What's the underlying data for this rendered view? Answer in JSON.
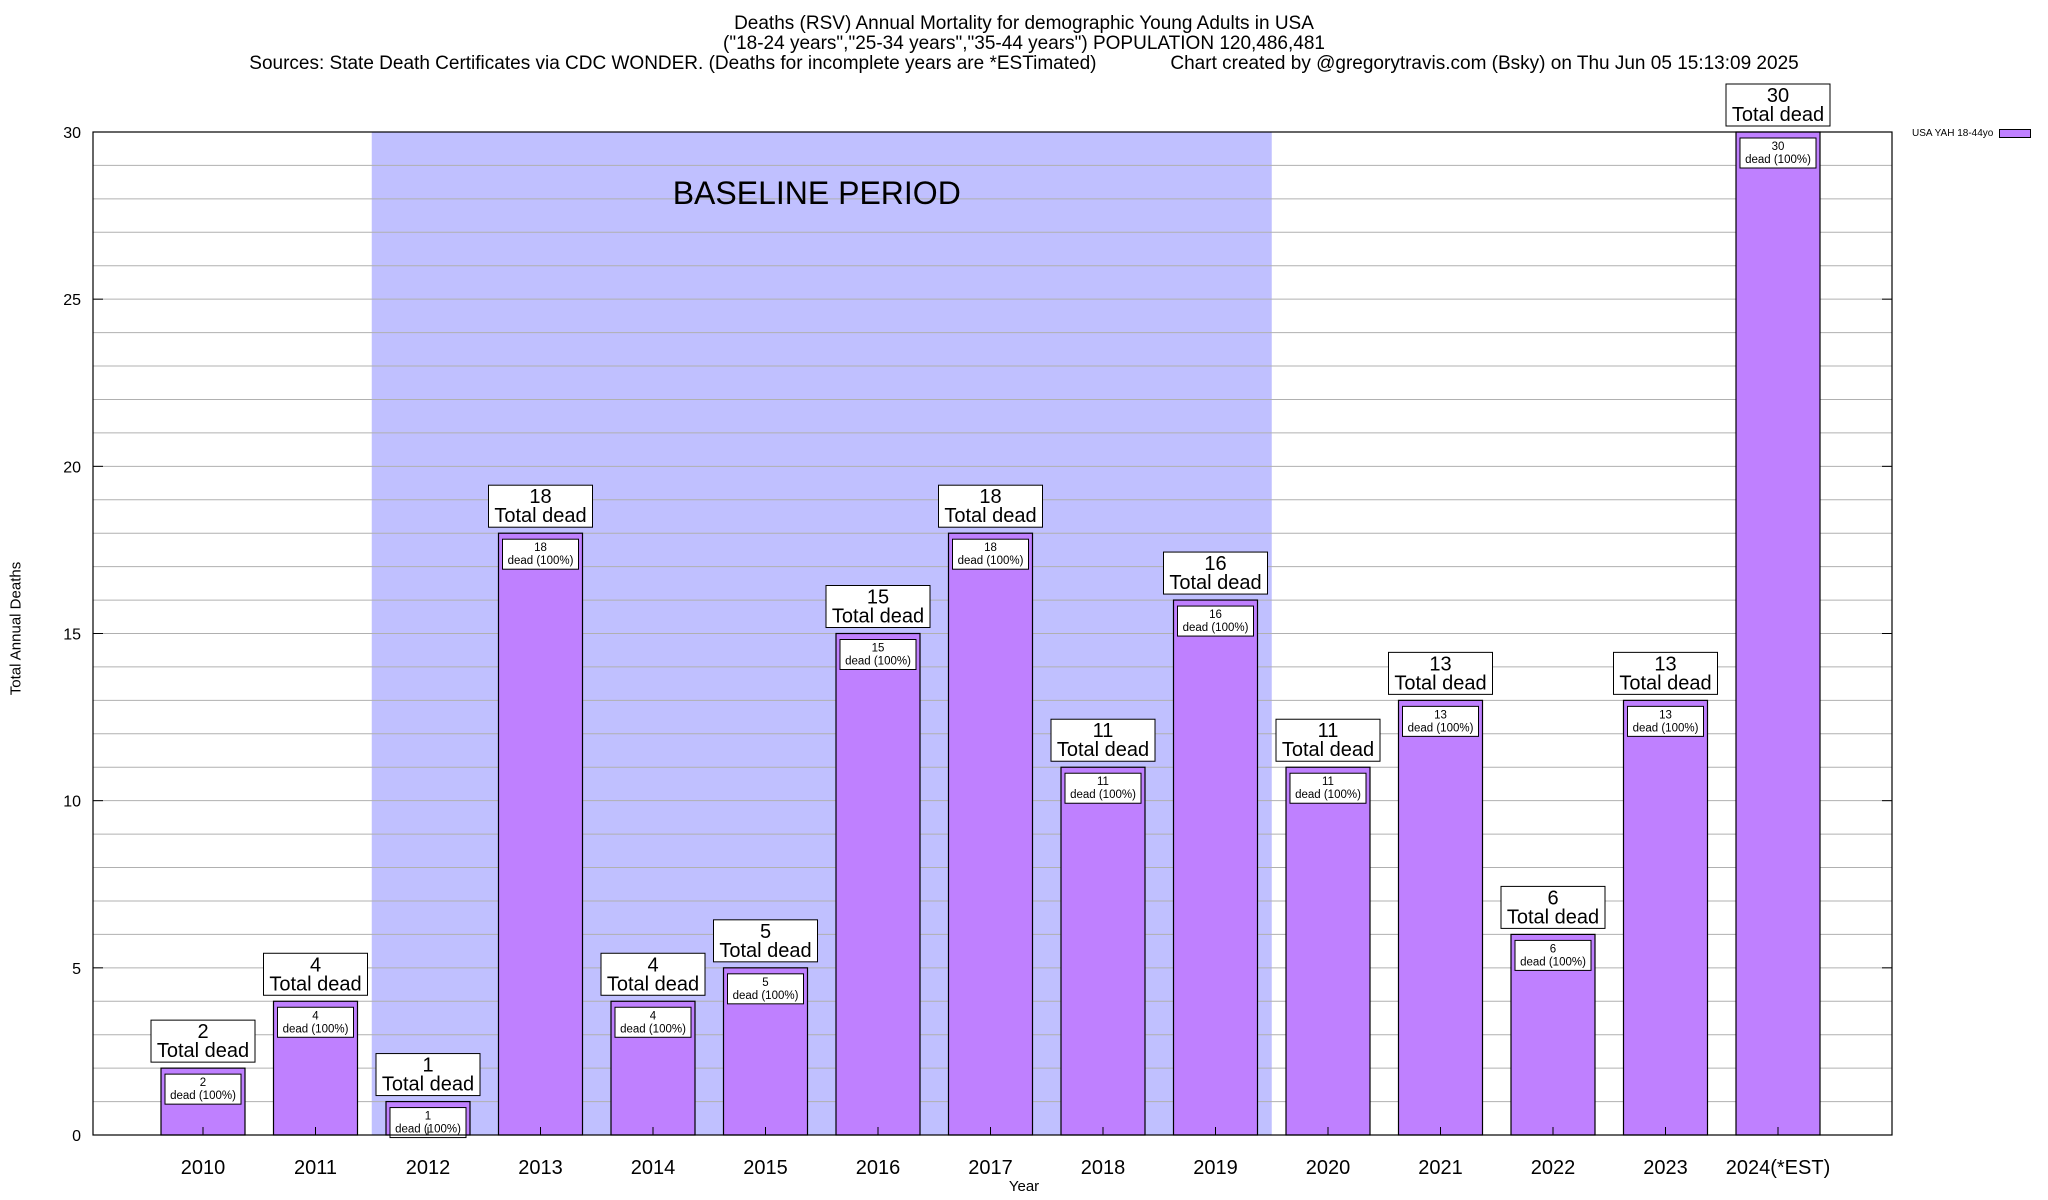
{
  "title": {
    "line1": "Deaths (RSV) Annual Mortality for demographic Young Adults in USA",
    "line2": "(\"18-24 years\",\"25-34 years\",\"35-44 years\") POPULATION 120,486,481",
    "line3": "Sources: State Death Certificates via CDC WONDER. (Deaths for incomplete years are *ESTimated)              Chart created by @gregorytravis.com (Bsky) on Thu Jun 05 15:13:09 2025"
  },
  "legend": {
    "label": "USA YAH 18-44yo"
  },
  "colors": {
    "bar": "#bf80ff",
    "baseline": "#c0c0ff",
    "grid": "#b0b0b0"
  },
  "chart_data": {
    "type": "bar",
    "categories": [
      "2010",
      "2011",
      "2012",
      "2013",
      "2014",
      "2015",
      "2016",
      "2017",
      "2018",
      "2019",
      "2020",
      "2021",
      "2022",
      "2023",
      "2024(*EST)"
    ],
    "series": [
      {
        "name": "USA YAH 18-44yo",
        "values": [
          2,
          4,
          1,
          18,
          4,
          5,
          15,
          18,
          11,
          16,
          11,
          13,
          6,
          13,
          30
        ]
      }
    ],
    "xlabel": "Year",
    "ylabel": "Total Annual Deaths",
    "ylim": [
      0,
      30
    ],
    "yticks": [
      0,
      5,
      10,
      15,
      20,
      25,
      30
    ],
    "grid": true,
    "baseline_period": {
      "label": "BASELINE PERIOD",
      "from": "2012",
      "to": "2019"
    },
    "top_label_suffix": "Total dead",
    "inner_label_suffix": "dead (100%)",
    "legend_position": "top-right"
  }
}
